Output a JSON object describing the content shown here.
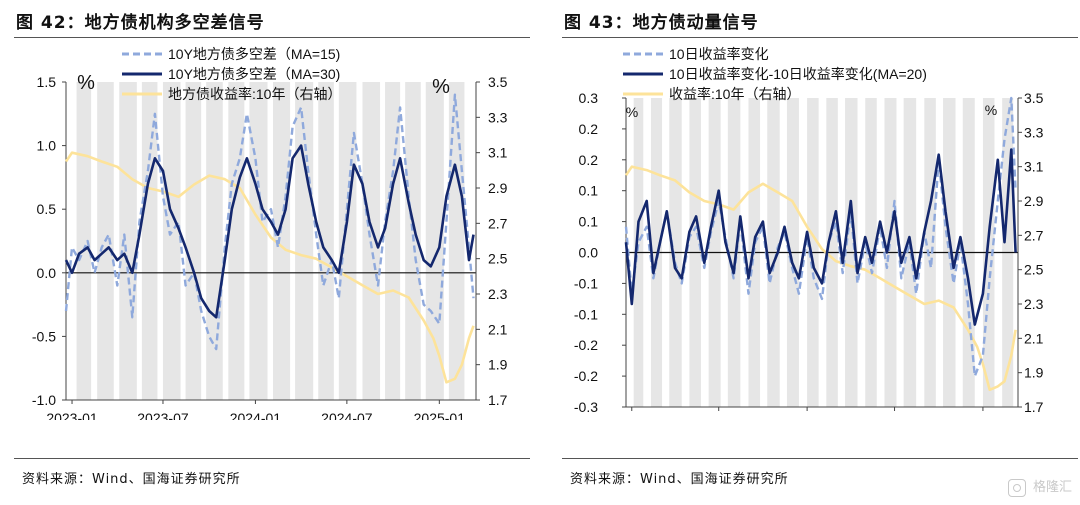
{
  "watermark": {
    "text": "格隆汇",
    "icon": "gelonghui-logo-icon"
  },
  "colors": {
    "ma15": "#8fa9dc",
    "ma30": "#14286e",
    "yield": "#fde39a",
    "shade": "#e6e6e6",
    "zero": "#111111"
  },
  "chart_data": [
    {
      "type": "line",
      "title": "图 42：地方债机构多空差信号",
      "source": "资料来源：Wind、国海证券研究所",
      "left_unit": "%",
      "right_unit": "%",
      "ylim_left": [
        -1.0,
        1.5
      ],
      "yticks_left": [
        "-1.0",
        "-0.5",
        "0.0",
        "0.5",
        "1.0",
        "1.5"
      ],
      "ylim_right": [
        1.7,
        3.5
      ],
      "yticks_right": [
        "1.7",
        "1.9",
        "2.1",
        "2.3",
        "2.5",
        "2.7",
        "2.9",
        "3.1",
        "3.3",
        "3.5"
      ],
      "x_range": [
        "2022-12-20",
        "2025-03-15"
      ],
      "xticks": [
        "2023-01",
        "2023-07",
        "2024-01",
        "2024-07",
        "2025-01"
      ],
      "shaded_periods": [
        [
          "2023-01-10",
          "2023-02-08"
        ],
        [
          "2023-02-20",
          "2023-03-25"
        ],
        [
          "2023-04-05",
          "2023-05-10"
        ],
        [
          "2023-05-20",
          "2023-06-20"
        ],
        [
          "2023-07-01",
          "2023-08-05"
        ],
        [
          "2023-08-15",
          "2023-09-15"
        ],
        [
          "2023-09-25",
          "2023-10-28"
        ],
        [
          "2023-11-08",
          "2023-12-10"
        ],
        [
          "2023-12-20",
          "2024-01-25"
        ],
        [
          "2024-02-05",
          "2024-03-10"
        ],
        [
          "2024-03-20",
          "2024-04-25"
        ],
        [
          "2024-05-05",
          "2024-06-05"
        ],
        [
          "2024-06-15",
          "2024-07-20"
        ],
        [
          "2024-08-01",
          "2024-09-05"
        ],
        [
          "2024-09-15",
          "2024-10-15"
        ],
        [
          "2024-10-25",
          "2024-11-25"
        ],
        [
          "2024-12-05",
          "2025-01-10"
        ],
        [
          "2025-01-20",
          "2025-02-20"
        ]
      ],
      "series": [
        {
          "name": "10Y地方债多空差（MA=15)",
          "axis": "left",
          "style": "dashed",
          "x": [
            "2022-12-20",
            "2023-01-01",
            "2023-01-15",
            "2023-02-01",
            "2023-02-15",
            "2023-03-01",
            "2023-03-15",
            "2023-04-01",
            "2023-04-15",
            "2023-05-01",
            "2023-05-15",
            "2023-06-01",
            "2023-06-15",
            "2023-07-01",
            "2023-07-15",
            "2023-08-01",
            "2023-08-15",
            "2023-09-01",
            "2023-09-15",
            "2023-10-01",
            "2023-10-15",
            "2023-11-01",
            "2023-11-15",
            "2023-12-01",
            "2023-12-15",
            "2024-01-01",
            "2024-01-15",
            "2024-02-01",
            "2024-02-15",
            "2024-03-01",
            "2024-03-15",
            "2024-04-01",
            "2024-04-15",
            "2024-05-01",
            "2024-05-15",
            "2024-06-01",
            "2024-06-15",
            "2024-07-01",
            "2024-07-15",
            "2024-08-01",
            "2024-08-15",
            "2024-09-01",
            "2024-09-15",
            "2024-10-01",
            "2024-10-15",
            "2024-11-01",
            "2024-11-15",
            "2024-12-01",
            "2024-12-15",
            "2025-01-01",
            "2025-01-15",
            "2025-02-01",
            "2025-02-15",
            "2025-03-01",
            "2025-03-10"
          ],
          "values": [
            -0.3,
            0.2,
            0.1,
            0.25,
            0.0,
            0.2,
            0.3,
            -0.1,
            0.3,
            -0.35,
            0.4,
            0.8,
            1.25,
            0.6,
            0.3,
            0.4,
            -0.1,
            0.0,
            -0.3,
            -0.5,
            -0.6,
            0.2,
            0.7,
            0.9,
            1.25,
            0.9,
            0.4,
            0.5,
            0.2,
            0.6,
            1.15,
            1.3,
            0.8,
            0.3,
            -0.1,
            0.1,
            -0.2,
            0.5,
            1.1,
            0.7,
            0.3,
            -0.1,
            0.4,
            0.8,
            1.3,
            0.6,
            0.1,
            -0.25,
            -0.3,
            -0.4,
            0.4,
            1.4,
            0.8,
            0.2,
            -0.2
          ]
        },
        {
          "name": "10Y地方债多空差（MA=30)",
          "axis": "left",
          "style": "solid",
          "x": [
            "2022-12-20",
            "2023-01-01",
            "2023-01-15",
            "2023-02-01",
            "2023-02-15",
            "2023-03-01",
            "2023-03-15",
            "2023-04-01",
            "2023-04-15",
            "2023-05-01",
            "2023-05-15",
            "2023-06-01",
            "2023-06-15",
            "2023-07-01",
            "2023-07-15",
            "2023-08-01",
            "2023-08-15",
            "2023-09-01",
            "2023-09-15",
            "2023-10-01",
            "2023-10-15",
            "2023-11-01",
            "2023-11-15",
            "2023-12-01",
            "2023-12-15",
            "2024-01-01",
            "2024-01-15",
            "2024-02-01",
            "2024-02-15",
            "2024-03-01",
            "2024-03-15",
            "2024-04-01",
            "2024-04-15",
            "2024-05-01",
            "2024-05-15",
            "2024-06-01",
            "2024-06-15",
            "2024-07-01",
            "2024-07-15",
            "2024-08-01",
            "2024-08-15",
            "2024-09-01",
            "2024-09-15",
            "2024-10-01",
            "2024-10-15",
            "2024-11-01",
            "2024-11-15",
            "2024-12-01",
            "2024-12-15",
            "2025-01-01",
            "2025-01-15",
            "2025-02-01",
            "2025-02-15",
            "2025-03-01",
            "2025-03-10"
          ],
          "values": [
            0.1,
            0.0,
            0.15,
            0.2,
            0.1,
            0.15,
            0.2,
            0.1,
            0.15,
            0.0,
            0.3,
            0.7,
            0.9,
            0.8,
            0.5,
            0.35,
            0.2,
            0.0,
            -0.2,
            -0.3,
            -0.35,
            0.1,
            0.5,
            0.75,
            0.9,
            0.7,
            0.5,
            0.4,
            0.3,
            0.5,
            0.9,
            1.0,
            0.7,
            0.4,
            0.2,
            0.1,
            0.0,
            0.4,
            0.85,
            0.7,
            0.4,
            0.2,
            0.35,
            0.7,
            0.9,
            0.55,
            0.3,
            0.1,
            0.05,
            0.2,
            0.6,
            0.85,
            0.6,
            0.1,
            0.3
          ]
        },
        {
          "name": "地方债收益率:10年（右轴）",
          "axis": "right",
          "style": "solid",
          "x": [
            "2022-12-20",
            "2023-01-01",
            "2023-02-01",
            "2023-03-01",
            "2023-04-01",
            "2023-05-01",
            "2023-06-01",
            "2023-07-01",
            "2023-08-01",
            "2023-09-01",
            "2023-10-01",
            "2023-11-01",
            "2023-12-01",
            "2024-01-01",
            "2024-02-01",
            "2024-03-01",
            "2024-04-01",
            "2024-05-01",
            "2024-06-01",
            "2024-07-01",
            "2024-08-01",
            "2024-09-01",
            "2024-10-01",
            "2024-11-01",
            "2024-12-01",
            "2024-12-20",
            "2025-01-01",
            "2025-01-15",
            "2025-02-01",
            "2025-02-15",
            "2025-03-01",
            "2025-03-10"
          ],
          "values": [
            3.05,
            3.1,
            3.08,
            3.05,
            3.02,
            2.95,
            2.9,
            2.88,
            2.85,
            2.92,
            2.97,
            2.95,
            2.9,
            2.75,
            2.62,
            2.55,
            2.52,
            2.5,
            2.45,
            2.4,
            2.35,
            2.3,
            2.32,
            2.28,
            2.15,
            2.05,
            1.95,
            1.8,
            1.82,
            1.9,
            2.05,
            2.12
          ]
        }
      ]
    },
    {
      "type": "line",
      "title": "图 43：地方债动量信号",
      "source": "资料来源：Wind、国海证券研究所",
      "left_unit": "%",
      "right_unit": "%",
      "ylim_left": [
        -0.3,
        0.3
      ],
      "yticks_left": [
        "-0.3",
        "-0.2",
        "-0.2",
        "-0.1",
        "-0.1",
        "0.0",
        "0.1",
        "0.1",
        "0.2",
        "0.2",
        "0.3"
      ],
      "ylim_right": [
        1.7,
        3.5
      ],
      "yticks_right": [
        "1.7",
        "1.9",
        "2.1",
        "2.3",
        "2.5",
        "2.7",
        "2.9",
        "3.1",
        "3.3",
        "3.5"
      ],
      "x_range": [
        "2022-12-20",
        "2025-03-15"
      ],
      "xticks": [
        "2023-01",
        "2023-07",
        "2024-01",
        "2024-07",
        "2025-01"
      ],
      "shaded_periods": [
        [
          "2023-01-05",
          "2023-01-25"
        ],
        [
          "2023-02-10",
          "2023-03-05"
        ],
        [
          "2023-03-20",
          "2023-04-15"
        ],
        [
          "2023-05-01",
          "2023-05-25"
        ],
        [
          "2023-06-10",
          "2023-07-05"
        ],
        [
          "2023-07-20",
          "2023-08-15"
        ],
        [
          "2023-09-01",
          "2023-09-25"
        ],
        [
          "2023-10-10",
          "2023-11-05"
        ],
        [
          "2023-11-20",
          "2023-12-15"
        ],
        [
          "2024-01-01",
          "2024-01-25"
        ],
        [
          "2024-02-10",
          "2024-03-05"
        ],
        [
          "2024-03-20",
          "2024-04-15"
        ],
        [
          "2024-05-01",
          "2024-05-25"
        ],
        [
          "2024-06-10",
          "2024-07-05"
        ],
        [
          "2024-07-20",
          "2024-08-15"
        ],
        [
          "2024-09-01",
          "2024-09-25"
        ],
        [
          "2024-10-10",
          "2024-11-05"
        ],
        [
          "2024-11-20",
          "2024-12-15"
        ],
        [
          "2025-01-01",
          "2025-01-25"
        ],
        [
          "2025-02-10",
          "2025-03-05"
        ]
      ],
      "series": [
        {
          "name": "10日收益率变化",
          "axis": "left",
          "style": "dashed",
          "x": [
            "2022-12-20",
            "2023-01-01",
            "2023-01-15",
            "2023-02-01",
            "2023-02-15",
            "2023-03-01",
            "2023-03-15",
            "2023-04-01",
            "2023-04-15",
            "2023-05-01",
            "2023-05-15",
            "2023-06-01",
            "2023-06-15",
            "2023-07-01",
            "2023-07-15",
            "2023-08-01",
            "2023-08-15",
            "2023-09-01",
            "2023-09-15",
            "2023-10-01",
            "2023-10-15",
            "2023-11-01",
            "2023-11-15",
            "2023-12-01",
            "2023-12-15",
            "2024-01-01",
            "2024-01-15",
            "2024-02-01",
            "2024-02-15",
            "2024-03-01",
            "2024-03-15",
            "2024-04-01",
            "2024-04-15",
            "2024-05-01",
            "2024-05-15",
            "2024-06-01",
            "2024-06-15",
            "2024-07-01",
            "2024-07-15",
            "2024-08-01",
            "2024-08-15",
            "2024-09-01",
            "2024-09-15",
            "2024-10-01",
            "2024-10-15",
            "2024-11-01",
            "2024-11-15",
            "2024-12-01",
            "2024-12-15",
            "2025-01-01",
            "2025-01-15",
            "2025-02-01",
            "2025-02-15",
            "2025-03-01",
            "2025-03-10"
          ],
          "values": [
            0.05,
            -0.08,
            0.02,
            0.05,
            -0.05,
            0.02,
            0.08,
            -0.02,
            -0.06,
            0.03,
            0.05,
            -0.03,
            0.04,
            0.1,
            0.03,
            -0.05,
            0.06,
            -0.08,
            0.02,
            0.05,
            -0.06,
            0.01,
            0.04,
            -0.03,
            -0.08,
            0.03,
            -0.05,
            -0.09,
            0.02,
            0.06,
            -0.04,
            0.08,
            -0.06,
            0.02,
            -0.04,
            0.05,
            -0.03,
            0.1,
            -0.05,
            0.02,
            -0.08,
            0.04,
            -0.03,
            0.18,
            0.05,
            -0.06,
            0.02,
            -0.1,
            -0.24,
            -0.2,
            -0.05,
            0.1,
            0.22,
            0.3,
            0.12
          ]
        },
        {
          "name": "10日收益率变化-10日收益率变化(MA=20)",
          "axis": "left",
          "style": "solid",
          "x": [
            "2022-12-20",
            "2023-01-01",
            "2023-01-15",
            "2023-02-01",
            "2023-02-15",
            "2023-03-01",
            "2023-03-15",
            "2023-04-01",
            "2023-04-15",
            "2023-05-01",
            "2023-05-15",
            "2023-06-01",
            "2023-06-15",
            "2023-07-01",
            "2023-07-15",
            "2023-08-01",
            "2023-08-15",
            "2023-09-01",
            "2023-09-15",
            "2023-10-01",
            "2023-10-15",
            "2023-11-01",
            "2023-11-15",
            "2023-12-01",
            "2023-12-15",
            "2024-01-01",
            "2024-01-15",
            "2024-02-01",
            "2024-02-15",
            "2024-03-01",
            "2024-03-15",
            "2024-04-01",
            "2024-04-15",
            "2024-05-01",
            "2024-05-15",
            "2024-06-01",
            "2024-06-15",
            "2024-07-01",
            "2024-07-15",
            "2024-08-01",
            "2024-08-15",
            "2024-09-01",
            "2024-09-15",
            "2024-10-01",
            "2024-10-15",
            "2024-11-01",
            "2024-11-15",
            "2024-12-01",
            "2024-12-15",
            "2025-01-01",
            "2025-01-15",
            "2025-02-01",
            "2025-02-15",
            "2025-03-01",
            "2025-03-10"
          ],
          "values": [
            0.02,
            -0.1,
            0.06,
            0.1,
            -0.04,
            0.02,
            0.08,
            -0.03,
            -0.05,
            0.04,
            0.07,
            -0.02,
            0.05,
            0.12,
            0.02,
            -0.04,
            0.07,
            -0.05,
            0.03,
            0.06,
            -0.04,
            0.0,
            0.05,
            -0.02,
            -0.05,
            0.04,
            -0.03,
            -0.06,
            0.02,
            0.08,
            -0.02,
            0.1,
            -0.04,
            0.03,
            -0.02,
            0.06,
            0.0,
            0.08,
            -0.02,
            0.03,
            -0.05,
            0.04,
            0.1,
            0.19,
            0.08,
            -0.03,
            0.03,
            -0.05,
            -0.14,
            -0.08,
            0.05,
            0.18,
            0.02,
            0.2,
            0.0
          ]
        },
        {
          "name": "收益率:10年（右轴）",
          "axis": "right",
          "style": "solid",
          "x": [
            "2022-12-20",
            "2023-01-01",
            "2023-02-01",
            "2023-03-01",
            "2023-04-01",
            "2023-05-01",
            "2023-06-01",
            "2023-07-01",
            "2023-08-01",
            "2023-09-01",
            "2023-10-01",
            "2023-11-01",
            "2023-12-01",
            "2024-01-01",
            "2024-02-01",
            "2024-03-01",
            "2024-04-01",
            "2024-05-01",
            "2024-06-01",
            "2024-07-01",
            "2024-08-01",
            "2024-09-01",
            "2024-10-01",
            "2024-11-01",
            "2024-12-01",
            "2024-12-20",
            "2025-01-01",
            "2025-01-15",
            "2025-02-01",
            "2025-02-15",
            "2025-03-01",
            "2025-03-10"
          ],
          "values": [
            3.05,
            3.1,
            3.08,
            3.05,
            3.02,
            2.95,
            2.9,
            2.88,
            2.85,
            2.95,
            3.0,
            2.95,
            2.9,
            2.75,
            2.62,
            2.55,
            2.52,
            2.5,
            2.45,
            2.4,
            2.35,
            2.3,
            2.32,
            2.28,
            2.15,
            2.05,
            1.95,
            1.8,
            1.82,
            1.85,
            2.0,
            2.15
          ]
        }
      ]
    }
  ]
}
